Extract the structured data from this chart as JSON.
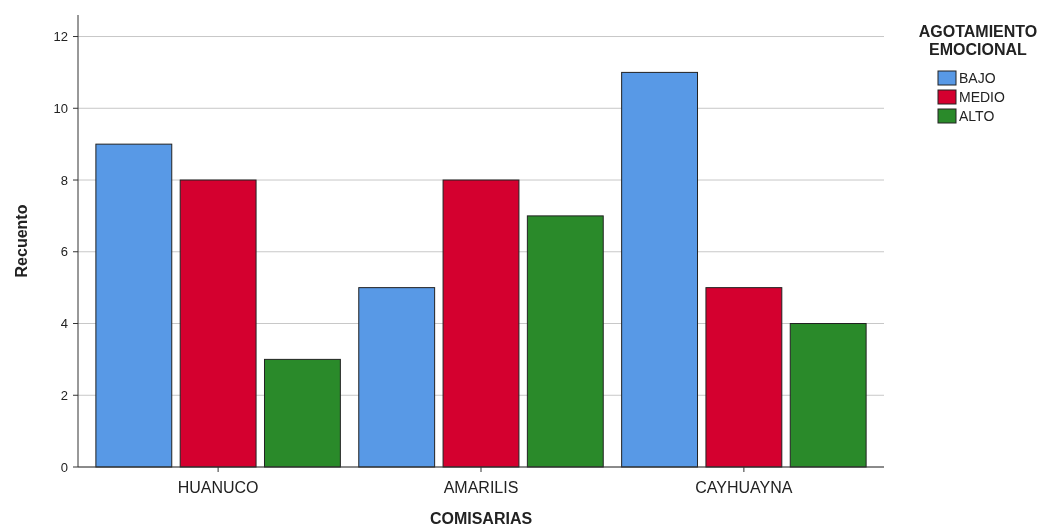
{
  "chart_data": {
    "type": "bar",
    "xlabel": "COMISARIAS",
    "ylabel": "Recuento",
    "legend_title": "AGOTAMIENTO EMOCIONAL",
    "categories": [
      "HUANUCO",
      "AMARILIS",
      "CAYHUAYNA"
    ],
    "series": [
      {
        "name": "BAJO",
        "color": "#5899e6",
        "values": [
          9,
          5,
          11
        ]
      },
      {
        "name": "MEDIO",
        "color": "#d4002f",
        "values": [
          8,
          8,
          5
        ]
      },
      {
        "name": "ALTO",
        "color": "#2a8a2a",
        "values": [
          3,
          7,
          4
        ]
      }
    ],
    "ylim": [
      0,
      12.6
    ],
    "yticks": [
      0,
      2,
      4,
      6,
      8,
      10,
      12
    ],
    "grid": "y",
    "legend": "top right"
  }
}
